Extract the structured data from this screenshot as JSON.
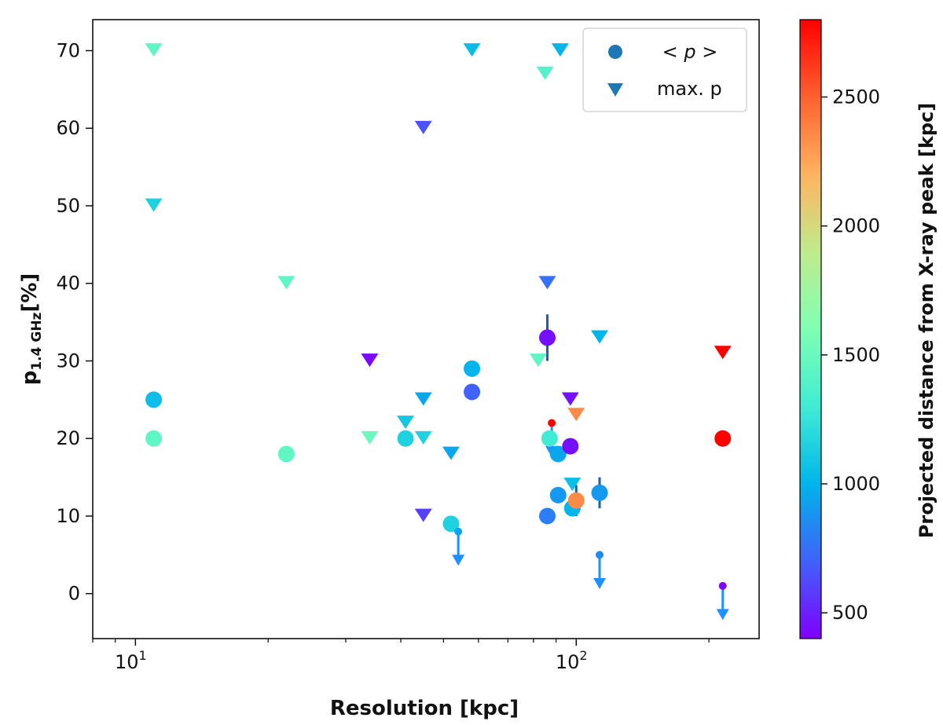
{
  "chart_data": {
    "type": "scatter",
    "xlabel": "Resolution [kpc]",
    "ylabel_main": "p",
    "ylabel_sub": "1.4 GHz",
    "ylabel_unit": "[%]",
    "xscale": "log",
    "xlim": [
      8.0,
      260
    ],
    "ylim": [
      -5.8,
      74.0
    ],
    "x_ticks": [
      10,
      100
    ],
    "x_tick_labels": [
      {
        "base": "10",
        "exp": "1"
      },
      {
        "base": "10",
        "exp": "2"
      }
    ],
    "y_ticks": [
      0,
      10,
      20,
      30,
      40,
      50,
      60,
      70
    ],
    "y_tick_labels": [
      "0",
      "10",
      "20",
      "30",
      "40",
      "50",
      "60",
      "70"
    ],
    "colorbar": {
      "label": "Projected distance from X-ray peak [kpc]",
      "range": [
        400,
        2800
      ],
      "ticks": [
        500,
        1000,
        1500,
        2000,
        2500
      ],
      "tick_labels": [
        "500",
        "1000",
        "1500",
        "2000",
        "2500"
      ],
      "colormap": "rainbow"
    },
    "legend": {
      "placement": "top-right",
      "entries": [
        {
          "marker": "circle",
          "label_parts": [
            "< ",
            "p",
            " >"
          ],
          "color": "#1f77b4"
        },
        {
          "marker": "triangle-down",
          "label": "max. p",
          "color": "#1f77b4"
        }
      ]
    },
    "series": [
      {
        "name": "< p >",
        "marker": "circle",
        "points": [
          {
            "x": 11,
            "y": 25,
            "c": 1050
          },
          {
            "x": 11,
            "y": 20,
            "c": 1450
          },
          {
            "x": 22,
            "y": 18,
            "c": 1450
          },
          {
            "x": 41,
            "y": 20,
            "c": 1150
          },
          {
            "x": 52,
            "y": 9,
            "c": 1150
          },
          {
            "x": 58,
            "y": 29,
            "c": 1000
          },
          {
            "x": 58,
            "y": 26,
            "c": 700
          },
          {
            "x": 86,
            "y": 33,
            "c": 450
          },
          {
            "x": 86,
            "y": 10,
            "c": 800
          },
          {
            "x": 87,
            "y": 20,
            "c": 1300
          },
          {
            "x": 91,
            "y": 18,
            "c": 950
          },
          {
            "x": 91,
            "y": 12.7,
            "c": 900
          },
          {
            "x": 97,
            "y": 19,
            "c": 450
          },
          {
            "x": 98,
            "y": 11,
            "c": 1000
          },
          {
            "x": 100,
            "y": 12,
            "c": 2350
          },
          {
            "x": 113,
            "y": 13,
            "c": 900
          },
          {
            "x": 215,
            "y": 20,
            "c": 2800
          }
        ]
      },
      {
        "name": "max. p",
        "marker": "triangle-down",
        "points": [
          {
            "x": 11,
            "y": 70,
            "c": 1450
          },
          {
            "x": 11,
            "y": 50,
            "c": 1150
          },
          {
            "x": 22,
            "y": 40,
            "c": 1450
          },
          {
            "x": 34,
            "y": 30,
            "c": 420
          },
          {
            "x": 34,
            "y": 20,
            "c": 1500
          },
          {
            "x": 41,
            "y": 22,
            "c": 1100
          },
          {
            "x": 45,
            "y": 60,
            "c": 650
          },
          {
            "x": 45,
            "y": 25,
            "c": 950
          },
          {
            "x": 45,
            "y": 20,
            "c": 1150
          },
          {
            "x": 45,
            "y": 10,
            "c": 600
          },
          {
            "x": 52,
            "y": 18,
            "c": 950
          },
          {
            "x": 58,
            "y": 70,
            "c": 1050
          },
          {
            "x": 82,
            "y": 30,
            "c": 1450
          },
          {
            "x": 85,
            "y": 67,
            "c": 1400
          },
          {
            "x": 86,
            "y": 40,
            "c": 750
          },
          {
            "x": 92,
            "y": 70,
            "c": 1000
          },
          {
            "x": 97,
            "y": 25,
            "c": 450
          },
          {
            "x": 98,
            "y": 14,
            "c": 1050
          },
          {
            "x": 100,
            "y": 23,
            "c": 2350
          },
          {
            "x": 113,
            "y": 33,
            "c": 1000
          },
          {
            "x": 215,
            "y": 31,
            "c": 2800
          }
        ]
      },
      {
        "name": "upper limits",
        "marker": "small-circle",
        "points": [
          {
            "x": 54,
            "y": 8,
            "c": 950,
            "arrow_to": 4
          },
          {
            "x": 88,
            "y": 22,
            "c": 2800,
            "arrow_to": 18
          },
          {
            "x": 113,
            "y": 5,
            "c": 850,
            "arrow_to": 1
          },
          {
            "x": 215,
            "y": 1,
            "c": 420,
            "arrow_to": -3
          }
        ]
      }
    ],
    "error_bars": [
      {
        "x": 86,
        "y_low": 30,
        "y_high": 36
      },
      {
        "x": 91,
        "y_low": 11.8,
        "y_high": 13.6
      },
      {
        "x": 100,
        "y_low": 10,
        "y_high": 14
      },
      {
        "x": 113,
        "y_low": 11,
        "y_high": 15
      },
      {
        "x": 215,
        "y_low": 19,
        "y_high": 21
      }
    ]
  }
}
